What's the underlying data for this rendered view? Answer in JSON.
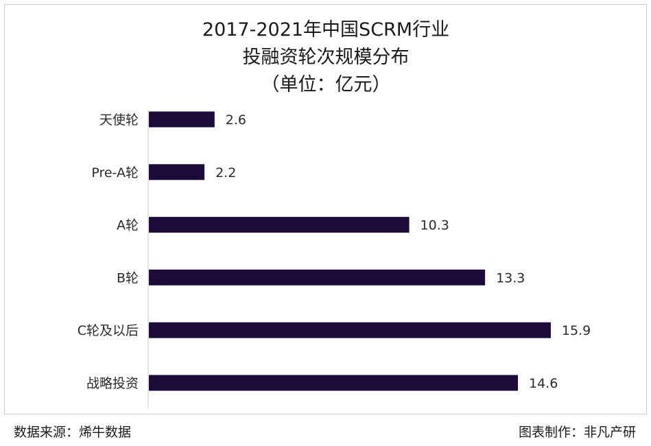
{
  "chart_data": {
    "type": "bar",
    "orientation": "horizontal",
    "title_lines": [
      "2017-2021年中国SCRM行业",
      "投融资轮次规模分布",
      "（单位：亿元）"
    ],
    "categories": [
      "天使轮",
      "Pre-A轮",
      "A轮",
      "B轮",
      "C轮及以后",
      "战略投资"
    ],
    "values": [
      2.6,
      2.2,
      10.3,
      13.3,
      15.9,
      14.6
    ],
    "value_labels": [
      "2.6",
      "2.2",
      "10.3",
      "13.3",
      "15.9",
      "14.6"
    ],
    "xlim": [
      0,
      17.5
    ],
    "grid": false,
    "legend": "none",
    "bar_color": "#1c0c3b"
  },
  "footer": {
    "source": "数据来源：烯牛数据",
    "credit": "图表制作：非凡产研"
  }
}
